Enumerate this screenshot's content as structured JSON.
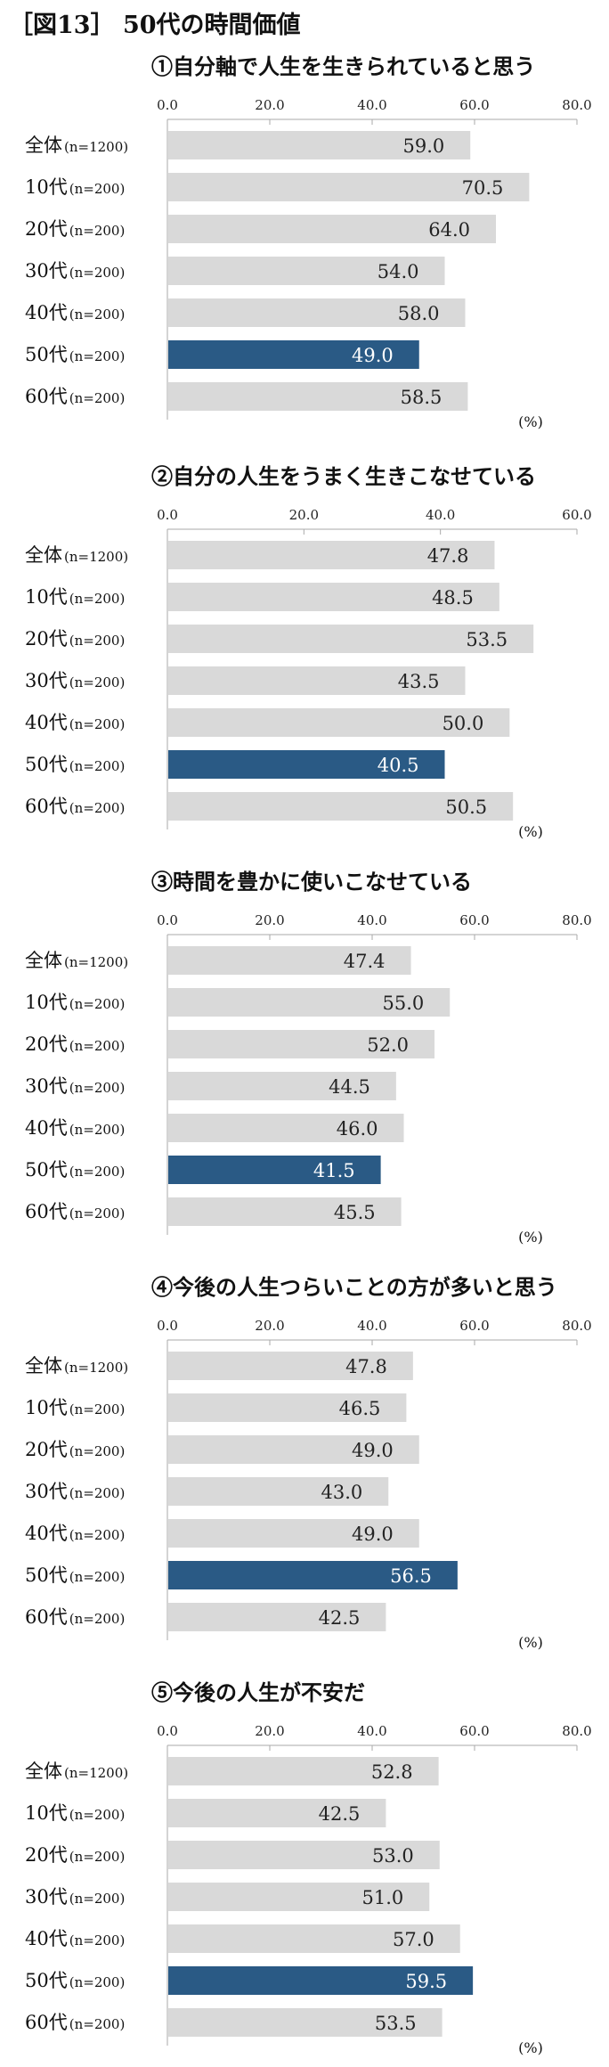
{
  "title": "［図13］ 50代の時間価値",
  "colors": {
    "bar_default": "#d9d9d9",
    "bar_highlight": "#2a5a85",
    "axis": "#aaaaaa",
    "label_dark": "#222222",
    "label_light": "#ffffff"
  },
  "chart_data": [
    {
      "type": "bar",
      "title": "①自分軸で人生を生きられていると思う",
      "categories": [
        "全体",
        "10代",
        "20代",
        "30代",
        "40代",
        "50代",
        "60代"
      ],
      "sample_sizes": [
        "(n=1200)",
        "(n=200)",
        "(n=200)",
        "(n=200)",
        "(n=200)",
        "(n=200)",
        "(n=200)"
      ],
      "values": [
        59.0,
        70.5,
        64.0,
        54.0,
        58.0,
        49.0,
        58.5
      ],
      "highlight": "50代",
      "xlim": [
        0,
        80
      ],
      "ticks": [
        "0.0",
        "20.0",
        "40.0",
        "60.0",
        "80.0"
      ],
      "unit": "(%)"
    },
    {
      "type": "bar",
      "title": "②自分の人生をうまく生きこなせている",
      "categories": [
        "全体",
        "10代",
        "20代",
        "30代",
        "40代",
        "50代",
        "60代"
      ],
      "sample_sizes": [
        "(n=1200)",
        "(n=200)",
        "(n=200)",
        "(n=200)",
        "(n=200)",
        "(n=200)",
        "(n=200)"
      ],
      "values": [
        47.8,
        48.5,
        53.5,
        43.5,
        50.0,
        40.5,
        50.5
      ],
      "highlight": "50代",
      "xlim": [
        0,
        60
      ],
      "ticks": [
        "0.0",
        "20.0",
        "40.0",
        "60.0"
      ],
      "unit": "(%)"
    },
    {
      "type": "bar",
      "title": "③時間を豊かに使いこなせている",
      "categories": [
        "全体",
        "10代",
        "20代",
        "30代",
        "40代",
        "50代",
        "60代"
      ],
      "sample_sizes": [
        "(n=1200)",
        "(n=200)",
        "(n=200)",
        "(n=200)",
        "(n=200)",
        "(n=200)",
        "(n=200)"
      ],
      "values": [
        47.4,
        55.0,
        52.0,
        44.5,
        46.0,
        41.5,
        45.5
      ],
      "highlight": "50代",
      "xlim": [
        0,
        80
      ],
      "ticks": [
        "0.0",
        "20.0",
        "40.0",
        "60.0",
        "80.0"
      ],
      "unit": "(%)"
    },
    {
      "type": "bar",
      "title": "④今後の人生つらいことの方が多いと思う",
      "categories": [
        "全体",
        "10代",
        "20代",
        "30代",
        "40代",
        "50代",
        "60代"
      ],
      "sample_sizes": [
        "(n=1200)",
        "(n=200)",
        "(n=200)",
        "(n=200)",
        "(n=200)",
        "(n=200)",
        "(n=200)"
      ],
      "values": [
        47.8,
        46.5,
        49.0,
        43.0,
        49.0,
        56.5,
        42.5
      ],
      "highlight": "50代",
      "xlim": [
        0,
        80
      ],
      "ticks": [
        "0.0",
        "20.0",
        "40.0",
        "60.0",
        "80.0"
      ],
      "unit": "(%)"
    },
    {
      "type": "bar",
      "title": "⑤今後の人生が不安だ",
      "categories": [
        "全体",
        "10代",
        "20代",
        "30代",
        "40代",
        "50代",
        "60代"
      ],
      "sample_sizes": [
        "(n=1200)",
        "(n=200)",
        "(n=200)",
        "(n=200)",
        "(n=200)",
        "(n=200)",
        "(n=200)"
      ],
      "values": [
        52.8,
        42.5,
        53.0,
        51.0,
        57.0,
        59.5,
        53.5
      ],
      "highlight": "50代",
      "xlim": [
        0,
        80
      ],
      "ticks": [
        "0.0",
        "20.0",
        "40.0",
        "60.0",
        "80.0"
      ],
      "unit": "(%)"
    }
  ]
}
